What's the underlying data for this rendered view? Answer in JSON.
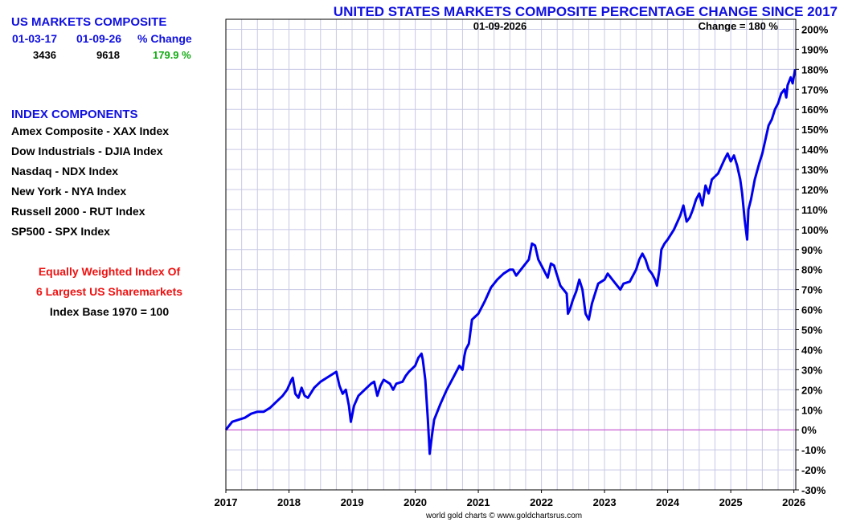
{
  "left_panel": {
    "composite_title": "US MARKETS COMPOSITE",
    "headers": [
      "01-03-17",
      "01-09-26",
      "% Change"
    ],
    "values": [
      "3436",
      "9618",
      "179.9 %"
    ],
    "components_title": "INDEX COMPONENTS",
    "components": [
      "Amex Composite - XAX Index",
      "Dow Industrials - DJIA Index",
      "Nasdaq - NDX Index",
      "New York - NYA Index",
      "Russell 2000 - RUT Index",
      "SP500 - SPX Index"
    ],
    "note_line1": "Equally Weighted Index Of",
    "note_line2": "6 Largest US Sharemarkets",
    "note_line3": "Index Base 1970 = 100"
  },
  "credit": "world gold charts © www.goldchartsrus.com",
  "colors": {
    "title": "#1010e0",
    "line": "#0000ee",
    "zero_line": "#cc44cc",
    "positive": "#11aa11",
    "note": "#ee1111",
    "grid": "#c8c8e6"
  },
  "chart_data": {
    "type": "line",
    "title": "UNITED STATES MARKETS COMPOSITE PERCENTAGE CHANGE SINCE 2017",
    "annotation_date": "01-09-2026",
    "annotation_change": "Change = 180 %",
    "xlabel": "",
    "ylabel": "",
    "x_ticks": [
      "2017",
      "2018",
      "2019",
      "2020",
      "2021",
      "2022",
      "2023",
      "2024",
      "2025",
      "2026"
    ],
    "y_ticks": [
      "-30%",
      "-20%",
      "-10%",
      "0%",
      "10%",
      "20%",
      "30%",
      "40%",
      "50%",
      "60%",
      "70%",
      "80%",
      "90%",
      "100%",
      "110%",
      "120%",
      "130%",
      "140%",
      "150%",
      "160%",
      "170%",
      "180%",
      "190%",
      "200%"
    ],
    "xlim": [
      2017.0,
      2026.03
    ],
    "ylim": [
      -30,
      205
    ],
    "grid": true,
    "series": [
      {
        "values": [
          [
            2017.0,
            0
          ],
          [
            2017.05,
            2
          ],
          [
            2017.1,
            4
          ],
          [
            2017.2,
            5
          ],
          [
            2017.3,
            6
          ],
          [
            2017.4,
            8
          ],
          [
            2017.5,
            9
          ],
          [
            2017.6,
            9
          ],
          [
            2017.7,
            11
          ],
          [
            2017.8,
            14
          ],
          [
            2017.9,
            17
          ],
          [
            2017.97,
            20
          ],
          [
            2018.04,
            25
          ],
          [
            2018.06,
            26
          ],
          [
            2018.1,
            18
          ],
          [
            2018.15,
            16
          ],
          [
            2018.2,
            21
          ],
          [
            2018.25,
            17
          ],
          [
            2018.3,
            16
          ],
          [
            2018.4,
            21
          ],
          [
            2018.5,
            24
          ],
          [
            2018.6,
            26
          ],
          [
            2018.7,
            28
          ],
          [
            2018.75,
            29
          ],
          [
            2018.8,
            22
          ],
          [
            2018.85,
            18
          ],
          [
            2018.9,
            20
          ],
          [
            2018.95,
            12
          ],
          [
            2018.98,
            4
          ],
          [
            2019.03,
            12
          ],
          [
            2019.1,
            17
          ],
          [
            2019.2,
            20
          ],
          [
            2019.3,
            23
          ],
          [
            2019.35,
            24
          ],
          [
            2019.4,
            17
          ],
          [
            2019.45,
            22
          ],
          [
            2019.5,
            25
          ],
          [
            2019.6,
            23
          ],
          [
            2019.65,
            20
          ],
          [
            2019.7,
            23
          ],
          [
            2019.8,
            24
          ],
          [
            2019.85,
            27
          ],
          [
            2019.9,
            29
          ],
          [
            2020.0,
            32
          ],
          [
            2020.05,
            36
          ],
          [
            2020.1,
            38
          ],
          [
            2020.12,
            35
          ],
          [
            2020.16,
            25
          ],
          [
            2020.2,
            5
          ],
          [
            2020.23,
            -12
          ],
          [
            2020.26,
            -4
          ],
          [
            2020.3,
            5
          ],
          [
            2020.4,
            13
          ],
          [
            2020.5,
            20
          ],
          [
            2020.6,
            26
          ],
          [
            2020.7,
            32
          ],
          [
            2020.75,
            30
          ],
          [
            2020.78,
            37
          ],
          [
            2020.8,
            40
          ],
          [
            2020.85,
            43
          ],
          [
            2020.9,
            55
          ],
          [
            2021.0,
            58
          ],
          [
            2021.1,
            64
          ],
          [
            2021.2,
            71
          ],
          [
            2021.3,
            75
          ],
          [
            2021.4,
            78
          ],
          [
            2021.5,
            80
          ],
          [
            2021.55,
            80
          ],
          [
            2021.6,
            77
          ],
          [
            2021.7,
            81
          ],
          [
            2021.8,
            85
          ],
          [
            2021.85,
            93
          ],
          [
            2021.9,
            92
          ],
          [
            2021.95,
            85
          ],
          [
            2022.0,
            82
          ],
          [
            2022.05,
            79
          ],
          [
            2022.1,
            76
          ],
          [
            2022.15,
            83
          ],
          [
            2022.2,
            82
          ],
          [
            2022.3,
            72
          ],
          [
            2022.4,
            68
          ],
          [
            2022.42,
            58
          ],
          [
            2022.45,
            60
          ],
          [
            2022.5,
            65
          ],
          [
            2022.55,
            69
          ],
          [
            2022.6,
            75
          ],
          [
            2022.65,
            70
          ],
          [
            2022.7,
            58
          ],
          [
            2022.75,
            55
          ],
          [
            2022.8,
            63
          ],
          [
            2022.85,
            68
          ],
          [
            2022.9,
            73
          ],
          [
            2023.0,
            75
          ],
          [
            2023.05,
            78
          ],
          [
            2023.1,
            76
          ],
          [
            2023.2,
            72
          ],
          [
            2023.25,
            70
          ],
          [
            2023.3,
            73
          ],
          [
            2023.4,
            74
          ],
          [
            2023.5,
            80
          ],
          [
            2023.55,
            85
          ],
          [
            2023.6,
            88
          ],
          [
            2023.65,
            85
          ],
          [
            2023.7,
            80
          ],
          [
            2023.75,
            78
          ],
          [
            2023.8,
            75
          ],
          [
            2023.83,
            72
          ],
          [
            2023.87,
            80
          ],
          [
            2023.9,
            90
          ],
          [
            2023.95,
            93
          ],
          [
            2024.0,
            95
          ],
          [
            2024.1,
            100
          ],
          [
            2024.2,
            107
          ],
          [
            2024.25,
            112
          ],
          [
            2024.3,
            104
          ],
          [
            2024.35,
            106
          ],
          [
            2024.4,
            110
          ],
          [
            2024.45,
            115
          ],
          [
            2024.5,
            118
          ],
          [
            2024.55,
            112
          ],
          [
            2024.6,
            122
          ],
          [
            2024.65,
            118
          ],
          [
            2024.7,
            125
          ],
          [
            2024.8,
            128
          ],
          [
            2024.9,
            135
          ],
          [
            2024.95,
            138
          ],
          [
            2025.0,
            134
          ],
          [
            2025.05,
            137
          ],
          [
            2025.1,
            132
          ],
          [
            2025.15,
            125
          ],
          [
            2025.18,
            118
          ],
          [
            2025.22,
            105
          ],
          [
            2025.26,
            95
          ],
          [
            2025.28,
            110
          ],
          [
            2025.32,
            115
          ],
          [
            2025.38,
            125
          ],
          [
            2025.45,
            133
          ],
          [
            2025.5,
            138
          ],
          [
            2025.55,
            145
          ],
          [
            2025.6,
            152
          ],
          [
            2025.65,
            155
          ],
          [
            2025.7,
            160
          ],
          [
            2025.75,
            163
          ],
          [
            2025.8,
            168
          ],
          [
            2025.85,
            170
          ],
          [
            2025.88,
            166
          ],
          [
            2025.9,
            172
          ],
          [
            2025.95,
            176
          ],
          [
            2025.98,
            173
          ],
          [
            2026.02,
            180
          ]
        ]
      }
    ]
  }
}
